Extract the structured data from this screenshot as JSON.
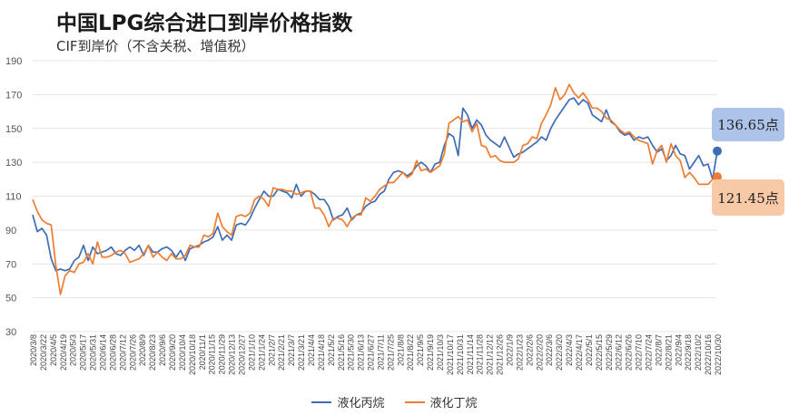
{
  "header": {
    "title": "中国LPG综合进口到岸价格指数",
    "subtitle": "CIF到岸价（不含关税、增值税）"
  },
  "colors": {
    "series_a": "#3e6db4",
    "series_b": "#ee7d31",
    "grid": "#e4e4e4"
  },
  "callouts": [
    {
      "text": "136.65点",
      "series": 0
    },
    {
      "text": "121.45点",
      "series": 1
    }
  ],
  "chart_data": {
    "type": "line",
    "title": "中国LPG综合进口到岸价格指数",
    "subtitle": "CIF到岸价（不含关税、增值税）",
    "ylim": [
      30,
      190
    ],
    "yticks": [
      30,
      50,
      70,
      90,
      110,
      130,
      150,
      170,
      190
    ],
    "grid": true,
    "legend_position": "bottom",
    "x_tick_labels": [
      "2020/3/8",
      "2020/3/22",
      "2020/4/5",
      "2020/4/19",
      "2020/5/3",
      "2020/5/17",
      "2020/5/31",
      "2020/6/14",
      "2020/6/28",
      "2020/7/12",
      "2020/7/26",
      "2020/8/9",
      "2020/8/23",
      "2020/9/6",
      "2020/9/20",
      "2020/10/4",
      "2020/10/18",
      "2020/11/1",
      "2020/11/15",
      "2020/11/29",
      "2020/12/13",
      "2020/12/27",
      "2021/1/10",
      "2021/1/24",
      "2021/2/7",
      "2021/2/21",
      "2021/3/7",
      "2021/3/21",
      "2021/4/4",
      "2021/4/18",
      "2021/5/2",
      "2021/5/16",
      "2021/5/30",
      "2021/6/13",
      "2021/6/27",
      "2021/7/11",
      "2021/7/25",
      "2021/8/8",
      "2021/8/22",
      "2021/9/5",
      "2021/9/19",
      "2021/10/3",
      "2021/10/17",
      "2021/10/31",
      "2021/11/14",
      "2021/11/28",
      "2021/12/12",
      "2021/12/26",
      "2022/1/9",
      "2022/1/23",
      "2022/2/6",
      "2022/2/20",
      "2022/3/6",
      "2022/3/20",
      "2022/4/3",
      "2022/4/17",
      "2022/5/1",
      "2022/5/15",
      "2022/5/29",
      "2022/6/12",
      "2022/6/26",
      "2022/7/10",
      "2022/7/24",
      "2022/8/7",
      "2022/8/21",
      "2022/9/4",
      "2022/9/18",
      "2022/10/2",
      "2022/10/16",
      "2022/10/30"
    ],
    "series": [
      {
        "name": "液化丙烷",
        "values": [
          99.0,
          89.0,
          91.0,
          87.0,
          73.0,
          66.0,
          67.0,
          66.0,
          67.0,
          72.0,
          74.0,
          81.0,
          72.0,
          80.0,
          76.0,
          77.0,
          78.0,
          80.0,
          76.0,
          75.0,
          78.0,
          80.0,
          78.0,
          81.0,
          75.0,
          81.0,
          77.0,
          77.0,
          79.0,
          80.0,
          78.0,
          74.0,
          78.0,
          72.0,
          79.0,
          80.0,
          81.0,
          83.0,
          84.0,
          86.0,
          92.0,
          84.0,
          87.0,
          84.0,
          93.0,
          94.0,
          93.0,
          97.0,
          103.0,
          108.0,
          113.0,
          110.0,
          110.0,
          114.0,
          113.0,
          112.0,
          109.0,
          117.0,
          110.0,
          113.0,
          113.0,
          111.0,
          108.0,
          108.0,
          104.0,
          96.0,
          98.0,
          99.0,
          103.0,
          96.0,
          99.0,
          100.0,
          104.0,
          106.0,
          107.0,
          111.0,
          113.0,
          120.0,
          124.0,
          125.0,
          124.0,
          122.0,
          124.0,
          128.0,
          130.0,
          128.0,
          124.0,
          129.0,
          130.0,
          140.0,
          147.0,
          145.0,
          134.0,
          162.0,
          158.0,
          150.0,
          155.0,
          152.0,
          146.0,
          143.0,
          141.0,
          139.0,
          145.0,
          139.0,
          133.0,
          135.0,
          136.0,
          138.0,
          140.0,
          142.0,
          145.0,
          143.0,
          150.0,
          155.0,
          159.0,
          163.0,
          167.0,
          168.0,
          164.0,
          167.0,
          165.0,
          158.0,
          156.0,
          154.0,
          161.0,
          154.0,
          152.0,
          148.0,
          146.0,
          147.0,
          143.0,
          145.0,
          144.0,
          145.0,
          140.0,
          136.0,
          138.0,
          131.0,
          134.0,
          140.0,
          135.0,
          134.0,
          126.0,
          130.0,
          134.0,
          128.0,
          129.0,
          120.0,
          136.65
        ]
      },
      {
        "name": "液化丁烷",
        "values": [
          108.0,
          101.0,
          96.0,
          94.0,
          93.0,
          69.0,
          52.0,
          63.0,
          66.0,
          65.0,
          70.0,
          71.0,
          76.0,
          70.0,
          83.0,
          74.0,
          74.0,
          75.0,
          77.0,
          78.0,
          76.0,
          71.0,
          72.0,
          73.0,
          76.0,
          81.0,
          74.0,
          77.0,
          74.0,
          72.0,
          76.0,
          73.0,
          73.0,
          75.0,
          81.0,
          80.0,
          80.0,
          87.0,
          86.0,
          88.0,
          100.0,
          92.0,
          89.0,
          87.0,
          98.0,
          99.0,
          98.0,
          100.0,
          108.0,
          110.0,
          108.0,
          104.0,
          115.0,
          114.0,
          114.0,
          113.0,
          113.0,
          111.0,
          112.0,
          113.0,
          113.0,
          103.0,
          103.0,
          99.0,
          92.0,
          97.0,
          97.0,
          96.0,
          92.0,
          97.0,
          99.0,
          99.0,
          109.0,
          107.0,
          110.0,
          114.0,
          116.0,
          118.0,
          118.0,
          121.0,
          124.0,
          121.0,
          123.0,
          131.0,
          125.0,
          126.0,
          124.0,
          126.0,
          128.0,
          135.0,
          153.0,
          155.0,
          157.0,
          154.0,
          155.0,
          148.0,
          153.0,
          140.0,
          139.0,
          133.0,
          134.0,
          131.0,
          130.0,
          130.0,
          130.0,
          132.0,
          140.0,
          141.0,
          145.0,
          144.0,
          153.0,
          158.0,
          164.0,
          174.0,
          167.0,
          170.0,
          176.0,
          171.0,
          168.0,
          171.0,
          167.0,
          162.0,
          162.0,
          160.0,
          156.0,
          155.0,
          152.0,
          149.0,
          147.0,
          148.0,
          145.0,
          143.0,
          142.0,
          141.0,
          129.0,
          137.0,
          140.0,
          130.0,
          141.0,
          134.0,
          131.0,
          121.0,
          124.0,
          121.0,
          117.0,
          117.0,
          117.0,
          120.0,
          121.45
        ]
      }
    ]
  }
}
